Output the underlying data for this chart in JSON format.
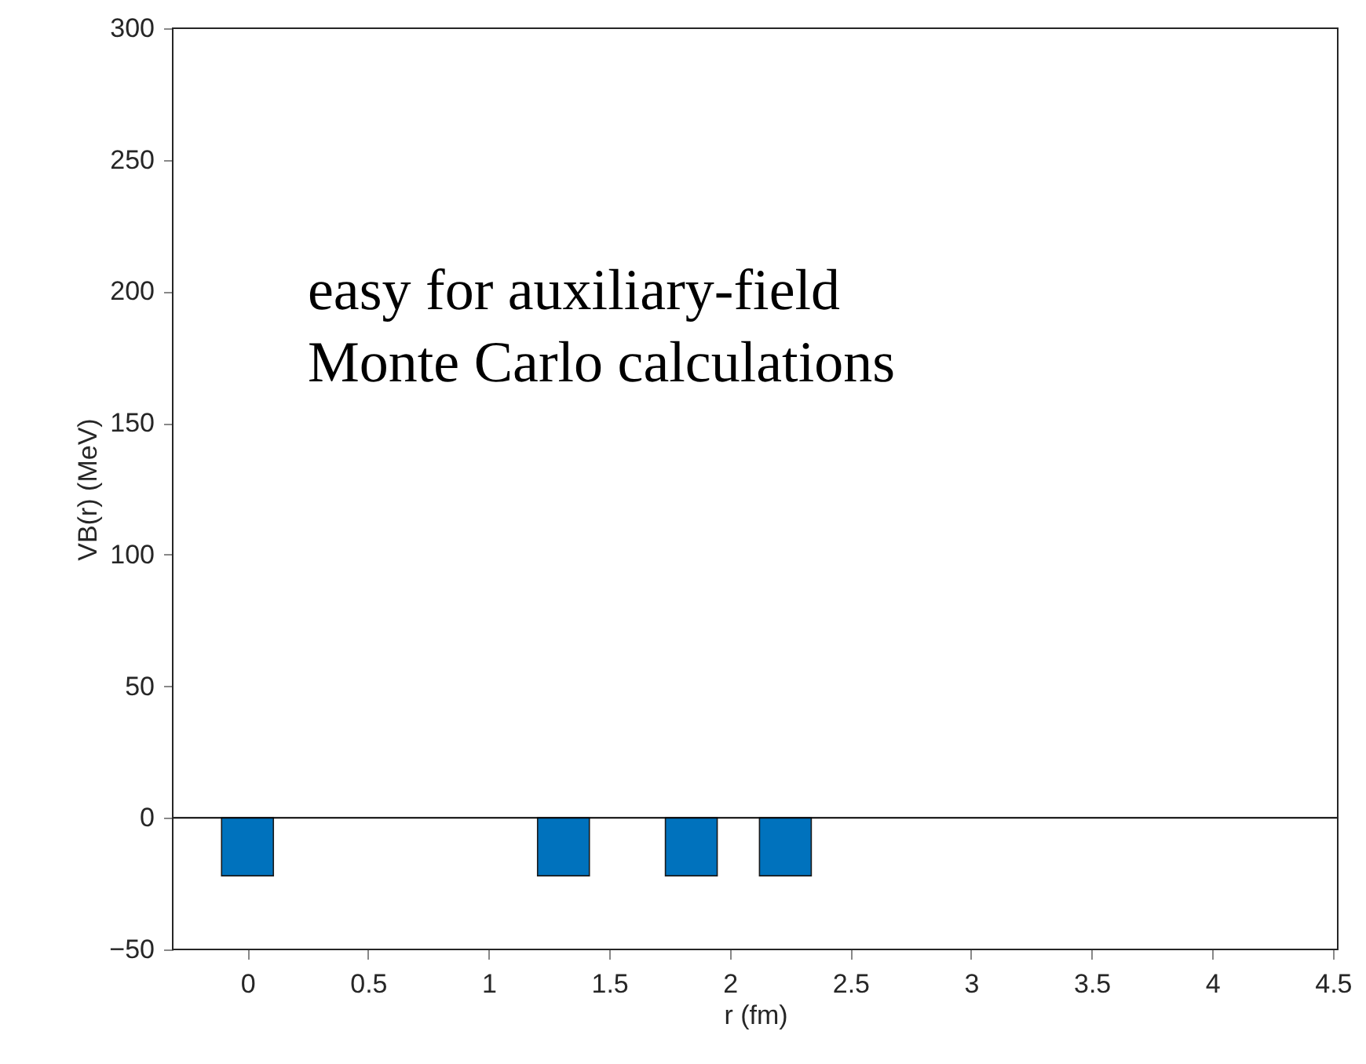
{
  "chart_data": {
    "type": "bar",
    "x": [
      0,
      1.31,
      1.84,
      2.23
    ],
    "values": [
      -22,
      -22,
      -22,
      -22
    ],
    "color": "#0072bd",
    "xlabel": "r (fm)",
    "ylabel": "VB(r) (MeV)",
    "xlim": [
      -0.31,
      4.52
    ],
    "xticks": [
      0,
      0.5,
      1,
      1.5,
      2,
      2.5,
      3,
      3.5,
      4,
      4.5
    ],
    "ylim": [
      -50,
      300
    ],
    "yticks": [
      -50,
      0,
      50,
      100,
      150,
      200,
      250,
      300
    ],
    "ref_lines": [
      {
        "axis": "y",
        "value": 0,
        "color": "#000000"
      }
    ],
    "annotations": [
      "easy for auxiliary-field",
      "Monte Carlo calculations"
    ],
    "grid": false
  }
}
